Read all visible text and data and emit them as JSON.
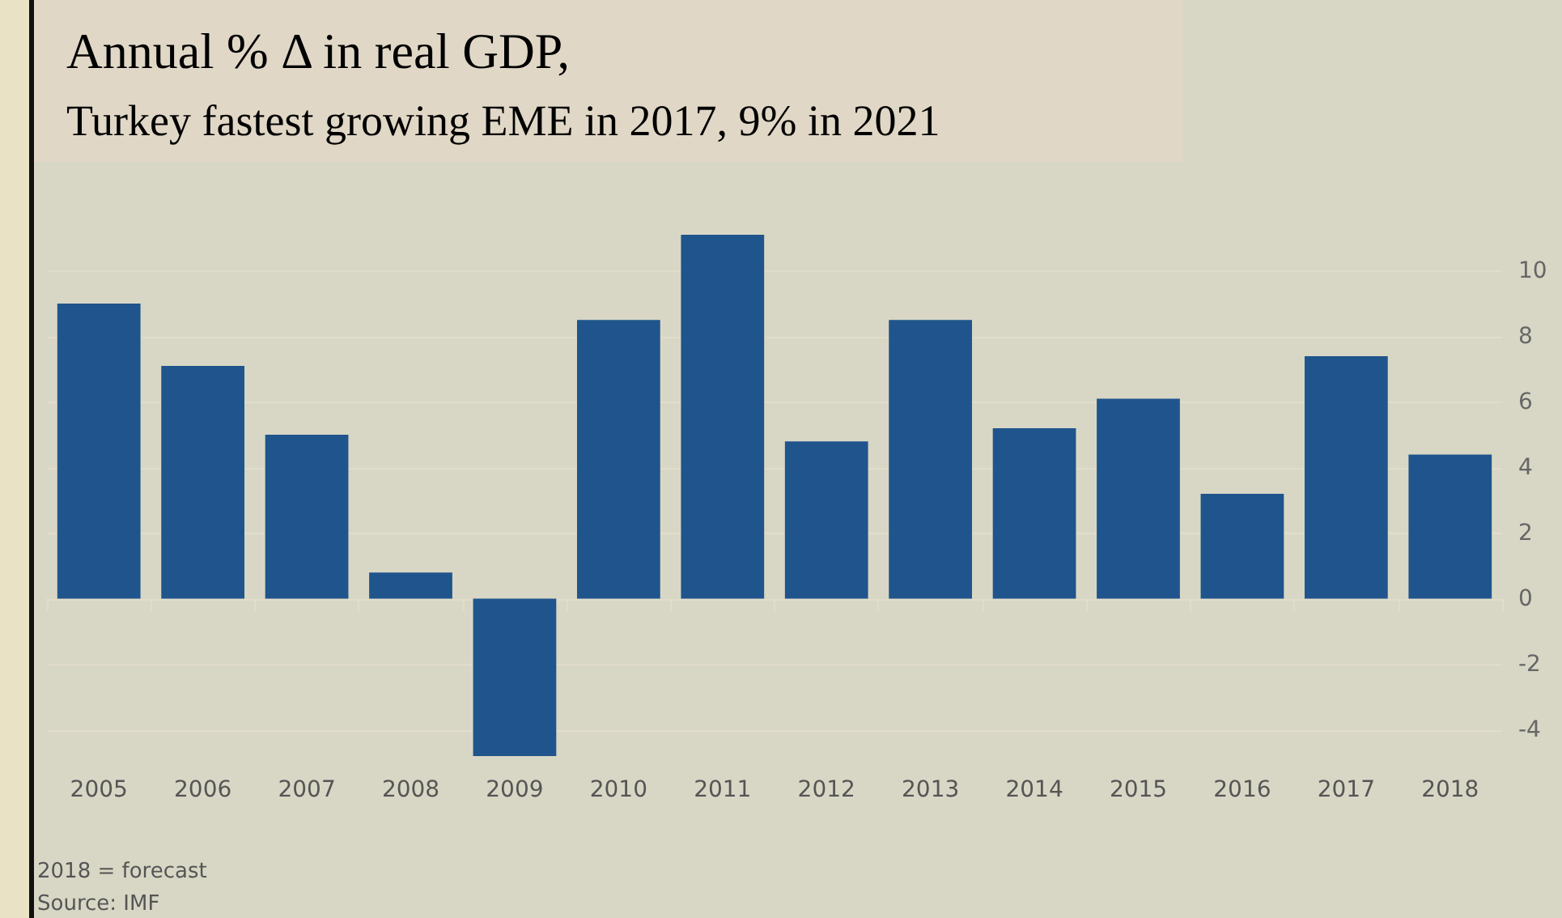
{
  "chart_data": {
    "type": "bar",
    "title": "Annual % Δ in real GDP,",
    "subtitle": "Turkey fastest growing EME in 2017, 9% in 2021",
    "categories": [
      "2005",
      "2006",
      "2007",
      "2008",
      "2009",
      "2010",
      "2011",
      "2012",
      "2013",
      "2014",
      "2015",
      "2016",
      "2017",
      "2018"
    ],
    "values": [
      9.0,
      7.1,
      5.0,
      0.8,
      -4.8,
      8.5,
      11.1,
      4.8,
      8.5,
      5.2,
      6.1,
      3.2,
      7.4,
      4.4
    ],
    "color": "#1f558c",
    "ylim": [
      -4.8,
      11.2
    ],
    "yticks": [
      -4,
      -2,
      0,
      2,
      4,
      6,
      8,
      10
    ],
    "grid": "y",
    "annotations": [
      "2018 = forecast",
      "Source: IMF"
    ]
  }
}
